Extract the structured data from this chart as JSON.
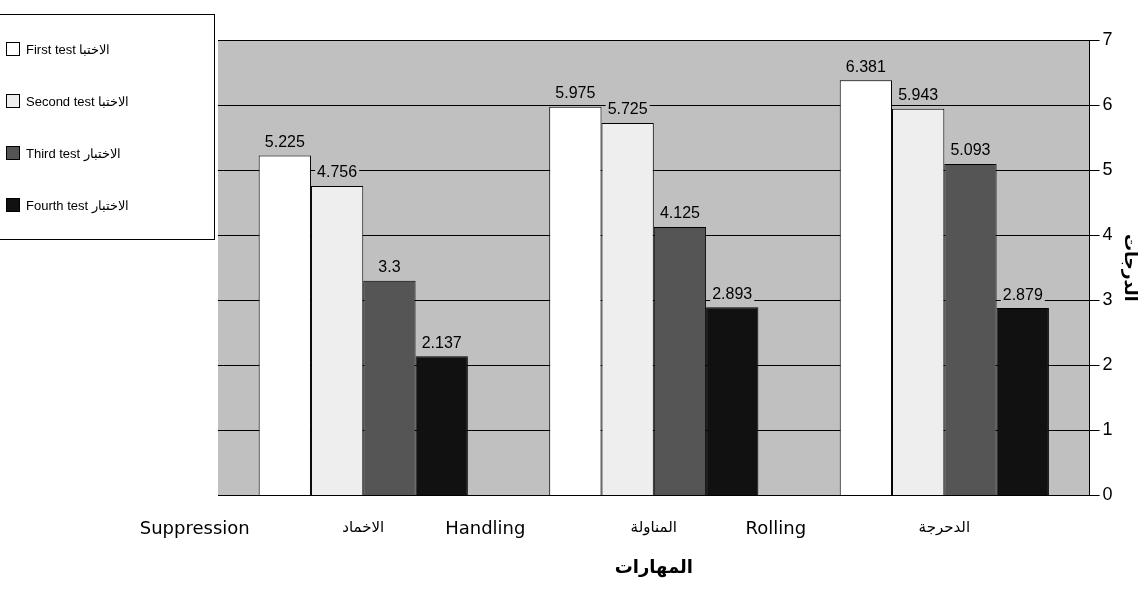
{
  "chart_data": {
    "type": "bar",
    "categories": [
      "الاخماد",
      "المناولة",
      "الدحرجة"
    ],
    "series": [
      {
        "name": "First test الاختبا",
        "color": "#ffffff",
        "values": [
          5.225,
          5.975,
          6.381
        ]
      },
      {
        "name": "Second test الاختبا",
        "color": "#eeeeee",
        "values": [
          4.756,
          5.725,
          5.943
        ]
      },
      {
        "name": "Third test الاختبار",
        "color": "#555555",
        "values": [
          3.3,
          4.125,
          5.093
        ]
      },
      {
        "name": "Fourth test الاختبار",
        "color": "#111111",
        "values": [
          2.137,
          2.893,
          2.879
        ]
      }
    ],
    "xlabel": "المهارات",
    "ylabel": "الدرجات",
    "ylim": [
      0,
      7
    ],
    "yticks": [
      0,
      1,
      2,
      3,
      4,
      5,
      6,
      7
    ],
    "grid": "y",
    "legend": "left",
    "data_labels": true,
    "annotations": [
      "Suppression",
      "Handling",
      "Rolling"
    ]
  }
}
